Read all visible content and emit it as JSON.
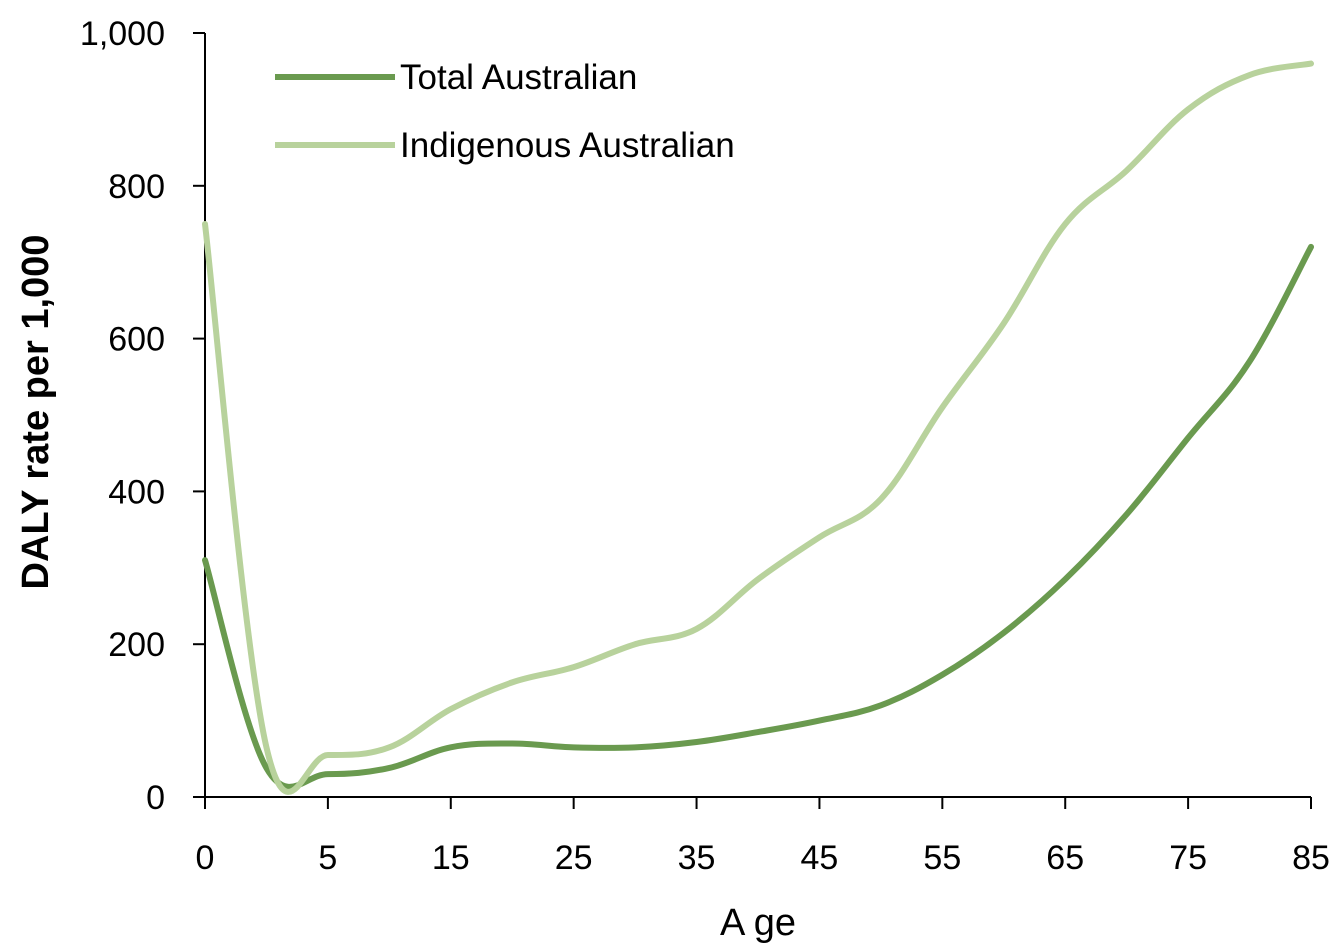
{
  "chart_data": {
    "type": "line",
    "title": "",
    "xlabel": "A ge",
    "ylabel": "DALY rate per 1,000",
    "xlim": [
      0,
      85
    ],
    "ylim": [
      0,
      1000
    ],
    "x_ticks": [
      {
        "value": 0,
        "label": "0"
      },
      {
        "value": 10,
        "label": "5"
      },
      {
        "value": 20,
        "label": "15"
      },
      {
        "value": 30,
        "label": "25"
      },
      {
        "value": 40,
        "label": "35"
      },
      {
        "value": 50,
        "label": "45"
      },
      {
        "value": 60,
        "label": "55"
      },
      {
        "value": 70,
        "label": "65"
      },
      {
        "value": 80,
        "label": "75"
      },
      {
        "value": 90,
        "label": "85"
      }
    ],
    "y_ticks": [
      {
        "value": 0,
        "label": "0"
      },
      {
        "value": 200,
        "label": "200"
      },
      {
        "value": 400,
        "label": "400"
      },
      {
        "value": 600,
        "label": "600"
      },
      {
        "value": 800,
        "label": "800"
      },
      {
        "value": 1000,
        "label": "1,000"
      }
    ],
    "grid": false,
    "legend_position": "top-left",
    "series": [
      {
        "name": "Total Australian",
        "color": "#6a9a4f",
        "x": [
          0,
          5,
          10,
          15,
          20,
          25,
          30,
          35,
          40,
          45,
          50,
          55,
          60,
          65,
          70,
          75,
          80,
          85,
          90
        ],
        "values": [
          310,
          38,
          30,
          38,
          65,
          70,
          65,
          65,
          72,
          85,
          100,
          120,
          160,
          215,
          285,
          370,
          470,
          570,
          720
        ]
      },
      {
        "name": "Indigenous Australian",
        "color": "#b8d29c",
        "x": [
          0,
          5,
          10,
          15,
          20,
          25,
          30,
          35,
          40,
          45,
          50,
          55,
          60,
          65,
          70,
          75,
          80,
          85,
          90
        ],
        "values": [
          750,
          65,
          55,
          65,
          115,
          150,
          170,
          200,
          220,
          285,
          340,
          390,
          510,
          620,
          750,
          820,
          900,
          945,
          960
        ]
      }
    ]
  }
}
